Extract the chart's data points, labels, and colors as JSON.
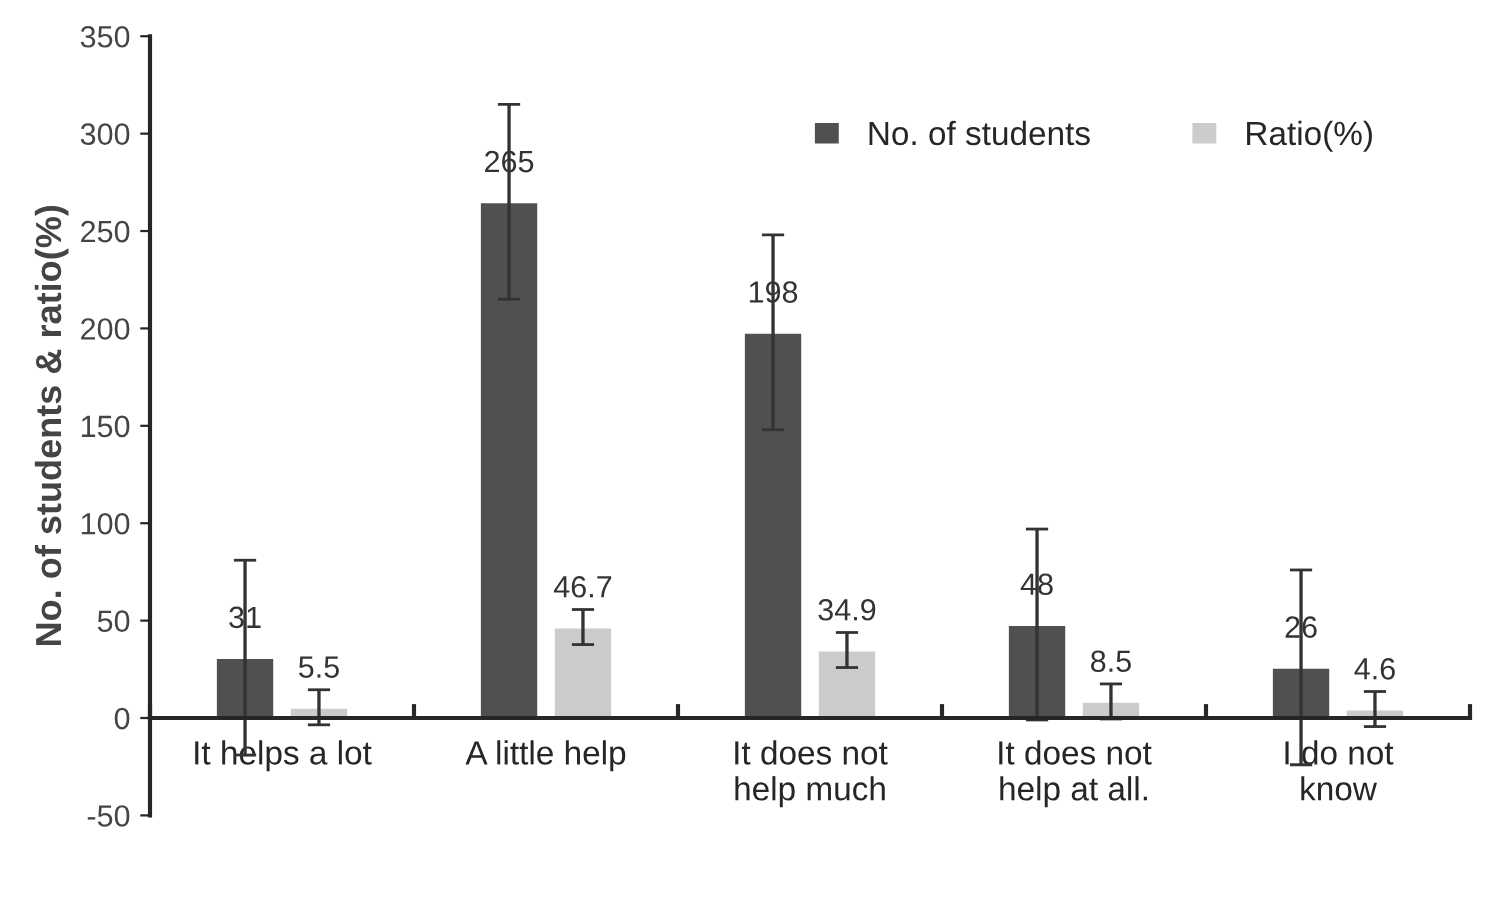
{
  "chart_data": {
    "type": "bar",
    "ylabel": "No. of students & ratio(%)",
    "categories": [
      "It helps a lot",
      "A little help",
      "It does not\nhelp much",
      "It does not\nhelp at all.",
      "I do not\nknow"
    ],
    "series": [
      {
        "name": "No. of students",
        "color": "#505050",
        "values": [
          31,
          265,
          198,
          48,
          26
        ],
        "errors": [
          50,
          50,
          50,
          49,
          50
        ]
      },
      {
        "name": "Ratio(%)",
        "color": "#cccccc",
        "values": [
          5.5,
          46.7,
          34.9,
          8.5,
          4.6
        ],
        "errors": [
          9,
          9,
          9,
          9,
          9
        ]
      }
    ],
    "ylim": [
      -50,
      350
    ],
    "yticks": [
      -50,
      0,
      50,
      100,
      150,
      200,
      250,
      300,
      350
    ],
    "data_labels": true,
    "legend": "top right",
    "grid": false
  }
}
